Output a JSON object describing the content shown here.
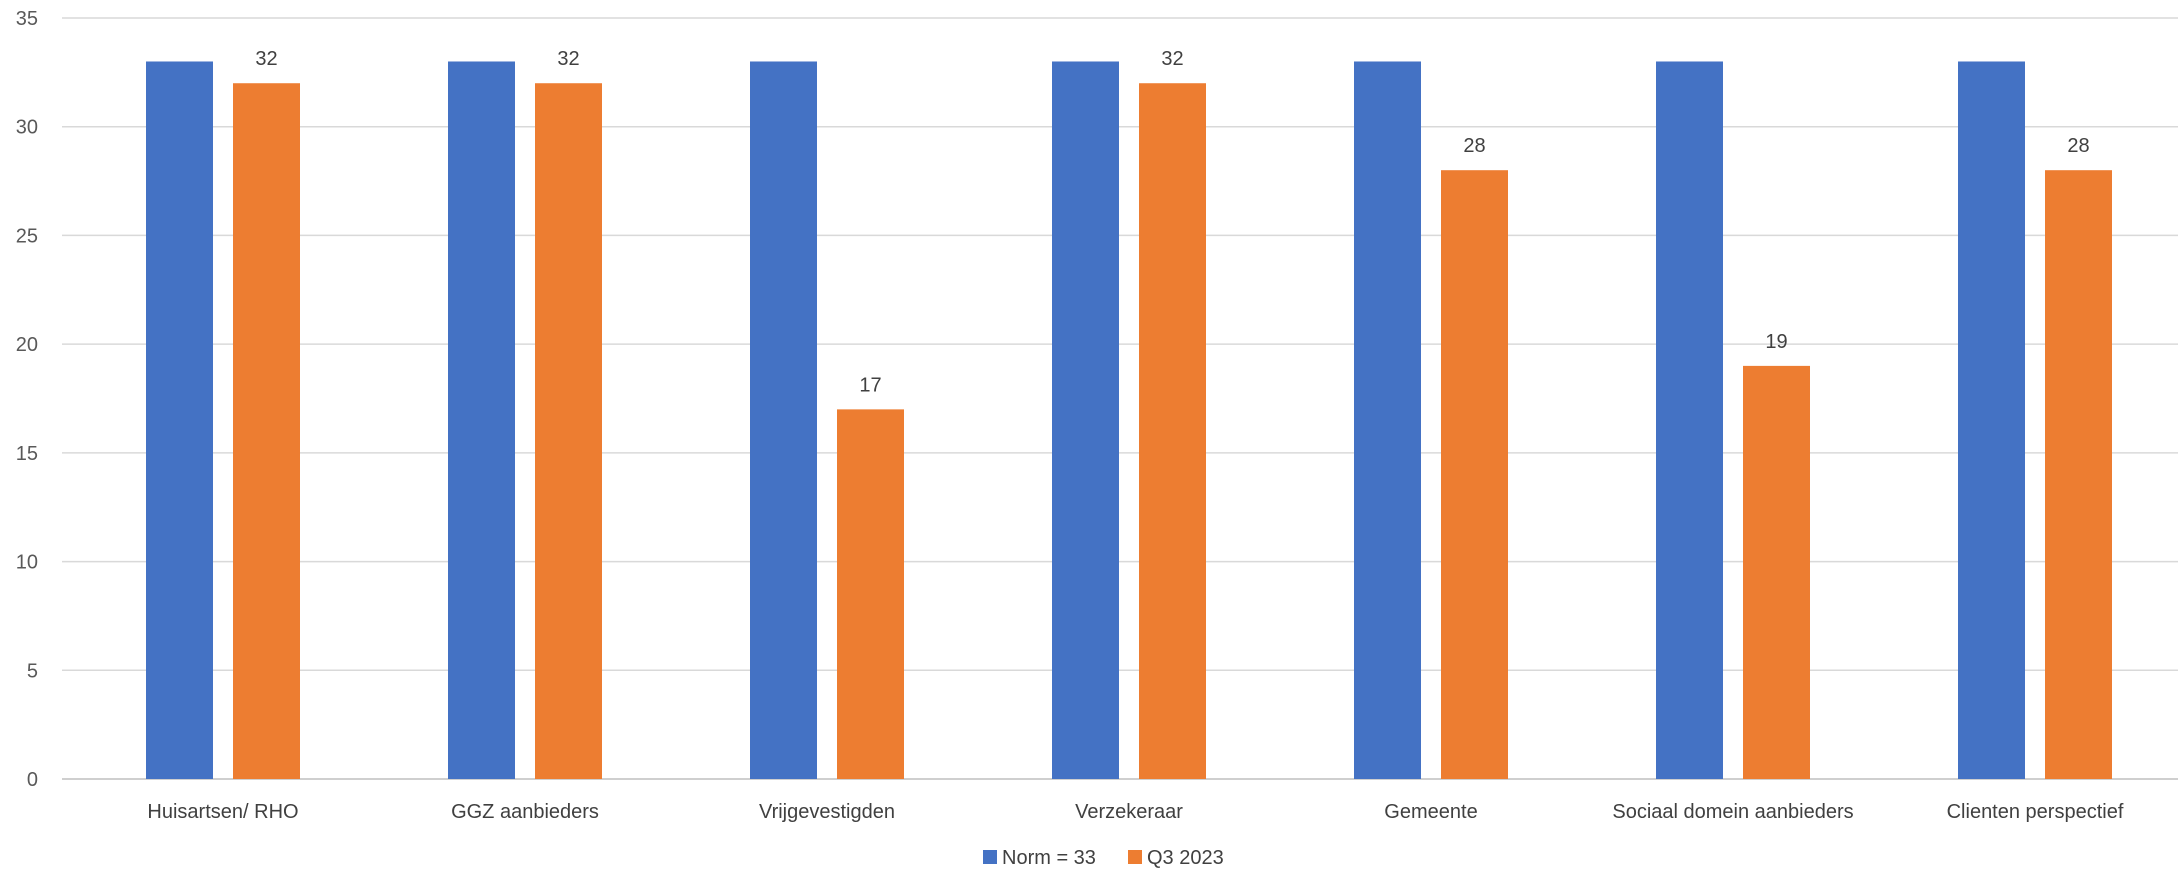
{
  "chart_data": {
    "type": "bar",
    "categories": [
      "Huisartsen/ RHO",
      "GGZ aanbieders",
      "Vrijgevestigden",
      "Verzekeraar",
      "Gemeente",
      "Sociaal domein aanbieders",
      "Clienten perspectief"
    ],
    "series": [
      {
        "name": "Norm = 33",
        "values": [
          33,
          33,
          33,
          33,
          33,
          33,
          33
        ],
        "color": "#4472C4",
        "show_labels": false
      },
      {
        "name": "Q3 2023",
        "values": [
          32,
          32,
          17,
          32,
          28,
          19,
          28
        ],
        "color": "#ED7D31",
        "show_labels": true
      }
    ],
    "ylim": [
      0,
      35
    ],
    "yticks": [
      0,
      5,
      10,
      15,
      20,
      25,
      30,
      35
    ],
    "grid": true,
    "legend_position": "bottom"
  }
}
